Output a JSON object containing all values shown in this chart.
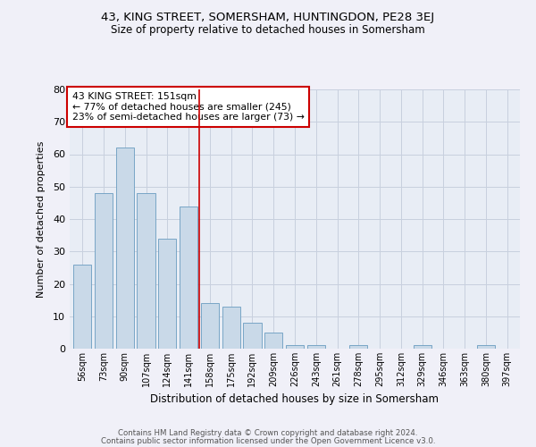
{
  "title1": "43, KING STREET, SOMERSHAM, HUNTINGDON, PE28 3EJ",
  "title2": "Size of property relative to detached houses in Somersham",
  "xlabel": "Distribution of detached houses by size in Somersham",
  "ylabel": "Number of detached properties",
  "bar_color": "#c9d9e8",
  "bar_edge_color": "#6a9cc0",
  "categories": [
    "56sqm",
    "73sqm",
    "90sqm",
    "107sqm",
    "124sqm",
    "141sqm",
    "158sqm",
    "175sqm",
    "192sqm",
    "209sqm",
    "226sqm",
    "243sqm",
    "261sqm",
    "278sqm",
    "295sqm",
    "312sqm",
    "329sqm",
    "346sqm",
    "363sqm",
    "380sqm",
    "397sqm"
  ],
  "values": [
    26,
    48,
    62,
    48,
    34,
    44,
    14,
    13,
    8,
    5,
    1,
    1,
    0,
    1,
    0,
    0,
    1,
    0,
    0,
    1,
    0
  ],
  "ylim": [
    0,
    80
  ],
  "yticks": [
    0,
    10,
    20,
    30,
    40,
    50,
    60,
    70,
    80
  ],
  "vline_x": 5.5,
  "annotation_text": "43 KING STREET: 151sqm\n← 77% of detached houses are smaller (245)\n23% of semi-detached houses are larger (73) →",
  "annotation_box_color": "#ffffff",
  "annotation_box_edge_color": "#cc0000",
  "vline_color": "#cc0000",
  "grid_color": "#c8d0de",
  "background_color": "#e8edf5",
  "fig_background_color": "#f0f0f8",
  "footer1": "Contains HM Land Registry data © Crown copyright and database right 2024.",
  "footer2": "Contains public sector information licensed under the Open Government Licence v3.0."
}
